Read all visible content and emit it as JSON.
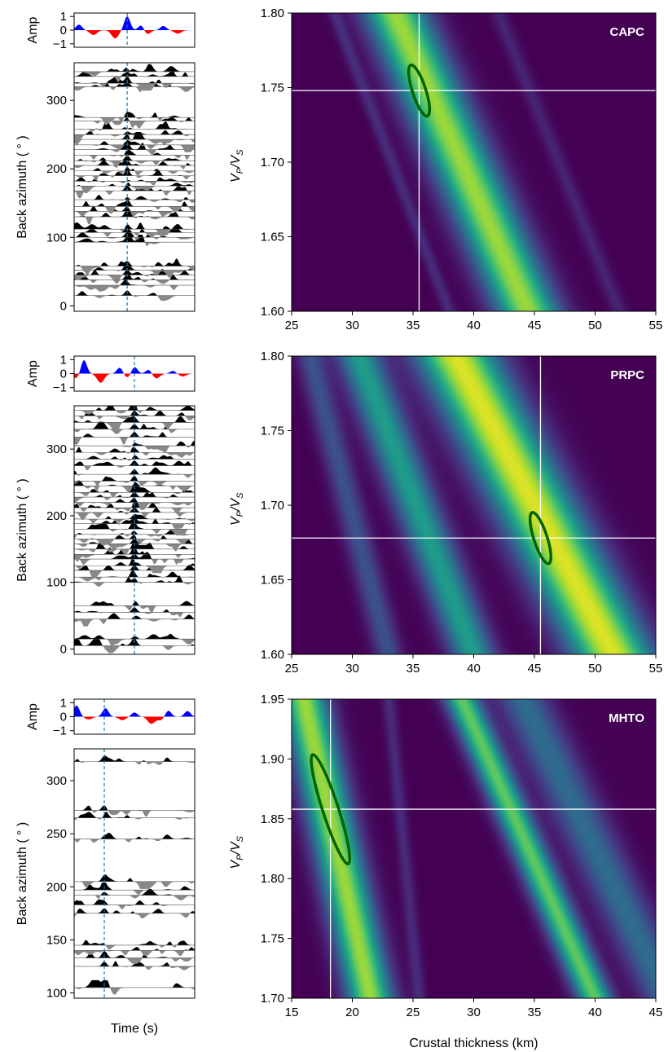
{
  "figure": {
    "left_column": {
      "amp_label": "Amp",
      "amp_ticks": [
        "1",
        "0",
        "−1"
      ],
      "ylabel": "Back azimuth ( ° )",
      "xlabel": "Time (s)"
    },
    "right_column": {
      "xlabel": "Crustal thickness (km)",
      "ylabel_main": "V",
      "ylabel_sub1": "P",
      "ylabel_slash": "/V",
      "ylabel_sub2": "S"
    },
    "colors": {
      "positive": "#0000ff",
      "negative": "#ff0000",
      "trace_black": "#000000",
      "trace_gray": "#888888",
      "marker_line": "#1f77b4",
      "ellipse": "#006400",
      "crosshair": "#ffffff",
      "cmap_low": "#440154",
      "cmap_high": "#fde725"
    }
  },
  "chart_data": [
    {
      "type": "heatmap",
      "station": "CAPC",
      "xlabel": "Crustal thickness (km)",
      "ylabel": "VP/VS",
      "xlim": [
        25,
        55
      ],
      "ylim": [
        1.6,
        1.8
      ],
      "xticks": [
        "25",
        "30",
        "35",
        "40",
        "45",
        "50",
        "55"
      ],
      "yticks": [
        "1.60",
        "1.65",
        "1.70",
        "1.75",
        "1.80"
      ],
      "best_H": 35.5,
      "best_k": 1.748,
      "ellipse": {
        "H_halfwidth": 0.35,
        "k_halfwidth": 0.018
      },
      "bands": [
        {
          "H_at_top": 33.5,
          "H_at_bottom": 44.5,
          "width_km": 1.8,
          "peak": 0.85
        },
        {
          "H_at_top": 28.5,
          "H_at_bottom": 38.0,
          "width_km": 0.4,
          "peak": 0.12
        },
        {
          "H_at_top": 42.0,
          "H_at_bottom": 52.0,
          "width_km": 0.5,
          "peak": 0.1
        }
      ],
      "receiver_functions": {
        "ylim": [
          -8,
          355
        ],
        "yticks": [
          0,
          100,
          200,
          300
        ],
        "marker_time": 0.44,
        "stack_pos": [
          [
            0.04,
            0.4
          ],
          [
            0.44,
            1.0
          ],
          [
            0.56,
            0.45
          ],
          [
            0.74,
            0.3
          ]
        ],
        "stack_neg": [
          [
            0.16,
            0.35
          ],
          [
            0.34,
            0.6
          ],
          [
            0.6,
            0.35
          ],
          [
            0.86,
            0.25
          ]
        ],
        "baz": [
          15,
          30,
          38,
          45,
          52,
          58,
          93,
          100,
          107,
          112,
          130,
          138,
          145,
          155,
          168,
          175,
          182,
          190,
          197,
          205,
          212,
          220,
          228,
          235,
          243,
          250,
          258,
          270,
          275,
          320,
          325,
          335,
          342
        ]
      }
    },
    {
      "type": "heatmap",
      "station": "PRPC",
      "xlabel": "Crustal thickness (km)",
      "ylabel": "VP/VS",
      "xlim": [
        25,
        55
      ],
      "ylim": [
        1.6,
        1.8
      ],
      "xticks": [
        "25",
        "30",
        "35",
        "40",
        "45",
        "50",
        "55"
      ],
      "yticks": [
        "1.60",
        "1.65",
        "1.70",
        "1.75",
        "1.80"
      ],
      "best_H": 45.5,
      "best_k": 1.678,
      "ellipse": {
        "H_halfwidth": 0.35,
        "k_halfwidth": 0.018
      },
      "bands": [
        {
          "H_at_top": 38.5,
          "H_at_bottom": 51.5,
          "width_km": 2.3,
          "peak": 0.95
        },
        {
          "H_at_top": 30.5,
          "H_at_bottom": 40.0,
          "width_km": 1.3,
          "peak": 0.55
        },
        {
          "H_at_top": 26.5,
          "H_at_bottom": 33.0,
          "width_km": 0.8,
          "peak": 0.25
        }
      ],
      "receiver_functions": {
        "ylim": [
          -8,
          365
        ],
        "yticks": [
          0,
          100,
          200,
          300
        ],
        "marker_time": 0.5,
        "stack_pos": [
          [
            0.08,
            1.0
          ],
          [
            0.38,
            0.45
          ],
          [
            0.5,
            0.5
          ],
          [
            0.62,
            0.3
          ],
          [
            0.82,
            0.2
          ]
        ],
        "stack_neg": [
          [
            0.02,
            0.35
          ],
          [
            0.22,
            0.65
          ],
          [
            0.44,
            0.3
          ],
          [
            0.68,
            0.35
          ],
          [
            0.9,
            0.2
          ]
        ],
        "baz": [
          5,
          15,
          45,
          55,
          65,
          100,
          108,
          118,
          125,
          135,
          142,
          150,
          158,
          165,
          172,
          180,
          188,
          195,
          205,
          212,
          220,
          228,
          235,
          245,
          252,
          262,
          275,
          285,
          295,
          305,
          318,
          330,
          340,
          350,
          358
        ]
      }
    },
    {
      "type": "heatmap",
      "station": "MHTO",
      "xlabel": "Crustal thickness (km)",
      "ylabel": "VP/VS",
      "xlim": [
        15,
        45
      ],
      "ylim": [
        1.7,
        1.95
      ],
      "xticks": [
        "15",
        "20",
        "25",
        "30",
        "35",
        "40",
        "45"
      ],
      "yticks": [
        "1.70",
        "1.75",
        "1.80",
        "1.85",
        "1.90",
        "1.95"
      ],
      "best_H": 18.2,
      "best_k": 1.858,
      "ellipse": {
        "H_halfwidth": 0.45,
        "k_halfwidth": 0.048
      },
      "bands": [
        {
          "H_at_top": 16.0,
          "H_at_bottom": 21.5,
          "width_km": 1.3,
          "peak": 0.85
        },
        {
          "H_at_top": 29.0,
          "H_at_bottom": 40.0,
          "width_km": 1.0,
          "peak": 0.75
        },
        {
          "H_at_top": 34.0,
          "H_at_bottom": 46.0,
          "width_km": 1.5,
          "peak": 0.35
        },
        {
          "H_at_top": 23.0,
          "H_at_bottom": 25.5,
          "width_km": 0.4,
          "peak": 0.12
        }
      ],
      "receiver_functions": {
        "ylim": [
          95,
          330
        ],
        "yticks": [
          100,
          150,
          200,
          250,
          300
        ],
        "marker_time": 0.25,
        "stack_pos": [
          [
            0.02,
            0.8
          ],
          [
            0.26,
            0.6
          ],
          [
            0.5,
            0.3
          ],
          [
            0.78,
            0.45
          ],
          [
            0.94,
            0.4
          ]
        ],
        "stack_neg": [
          [
            0.12,
            0.2
          ],
          [
            0.4,
            0.25
          ],
          [
            0.64,
            0.5
          ],
          [
            0.72,
            0.25
          ]
        ],
        "baz": [
          105,
          125,
          133,
          140,
          145,
          175,
          183,
          192,
          197,
          205,
          245,
          265,
          272,
          318
        ]
      }
    }
  ]
}
